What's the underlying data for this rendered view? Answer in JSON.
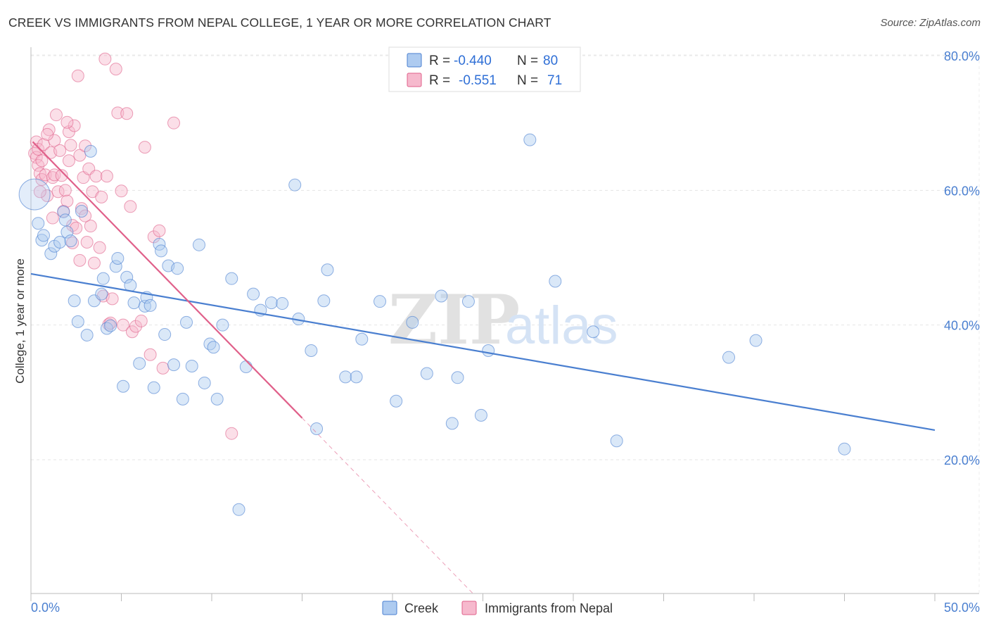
{
  "title": "CREEK VS IMMIGRANTS FROM NEPAL COLLEGE, 1 YEAR OR MORE CORRELATION CHART",
  "source": "Source: ZipAtlas.com",
  "watermark": {
    "zip": "ZIP",
    "atlas": "atlas"
  },
  "colors": {
    "creek": "#4a7fd0",
    "creek_fill": "#aecbf0",
    "nepal": "#e0608a",
    "nepal_fill": "#f6b9cd",
    "tick": "#4a7fd0"
  },
  "legend": {
    "creek": {
      "r_label": "R =",
      "r_value": "-0.440",
      "n_label": "N =",
      "n_value": "80"
    },
    "nepal": {
      "r_label": "R =",
      "r_value": "-0.551",
      "n_label": "N =",
      "n_value": "71"
    }
  },
  "chart_data": {
    "type": "scatter",
    "title": "CREEK VS IMMIGRANTS FROM NEPAL COLLEGE, 1 YEAR OR MORE CORRELATION CHART",
    "xlabel": "",
    "ylabel": "College, 1 year or more",
    "xlim": [
      0,
      50
    ],
    "ylim": [
      0,
      82
    ],
    "x_tick_labels": [
      "0.0%",
      "50.0%"
    ],
    "y_ticks": [
      20,
      40,
      60,
      80
    ],
    "y_tick_labels": [
      "20.0%",
      "40.0%",
      "60.0%",
      "80.0%"
    ],
    "grid": true,
    "legend_position": "top-center",
    "bottom_legend": [
      "Creek",
      "Immigrants from Nepal"
    ],
    "series": [
      {
        "name": "Creek",
        "r": -0.44,
        "n": 80,
        "trend": {
          "x": [
            0,
            50
          ],
          "y": [
            47.6,
            24.4
          ]
        },
        "points": [
          [
            0.4,
            55.1
          ],
          [
            0.6,
            52.6
          ],
          [
            0.7,
            53.3
          ],
          [
            1.1,
            50.6
          ],
          [
            1.3,
            51.7
          ],
          [
            1.6,
            52.3
          ],
          [
            1.8,
            56.8
          ],
          [
            1.9,
            55.6
          ],
          [
            2.0,
            53.8
          ],
          [
            2.2,
            52.5
          ],
          [
            2.4,
            43.6
          ],
          [
            2.6,
            40.5
          ],
          [
            2.8,
            56.9
          ],
          [
            3.1,
            38.5
          ],
          [
            3.3,
            65.8
          ],
          [
            3.5,
            43.6
          ],
          [
            3.9,
            44.6
          ],
          [
            4.0,
            46.9
          ],
          [
            4.2,
            39.5
          ],
          [
            4.4,
            39.9
          ],
          [
            4.7,
            48.7
          ],
          [
            4.8,
            49.9
          ],
          [
            5.1,
            30.9
          ],
          [
            5.3,
            47.1
          ],
          [
            5.5,
            45.9
          ],
          [
            5.7,
            43.3
          ],
          [
            6.0,
            34.3
          ],
          [
            6.3,
            42.8
          ],
          [
            6.4,
            44.1
          ],
          [
            6.6,
            42.9
          ],
          [
            6.8,
            30.7
          ],
          [
            7.1,
            52.0
          ],
          [
            7.2,
            51.0
          ],
          [
            7.4,
            38.6
          ],
          [
            7.6,
            48.8
          ],
          [
            7.9,
            34.1
          ],
          [
            8.1,
            48.4
          ],
          [
            8.4,
            29.0
          ],
          [
            8.6,
            40.4
          ],
          [
            8.9,
            33.9
          ],
          [
            9.3,
            51.9
          ],
          [
            9.6,
            31.4
          ],
          [
            9.9,
            37.2
          ],
          [
            10.1,
            36.7
          ],
          [
            10.3,
            29.0
          ],
          [
            10.6,
            40.0
          ],
          [
            11.1,
            46.9
          ],
          [
            11.5,
            12.6
          ],
          [
            11.9,
            33.8
          ],
          [
            12.3,
            44.6
          ],
          [
            12.7,
            42.2
          ],
          [
            13.3,
            43.3
          ],
          [
            13.9,
            43.2
          ],
          [
            14.6,
            60.8
          ],
          [
            14.8,
            40.9
          ],
          [
            15.5,
            36.2
          ],
          [
            15.8,
            24.6
          ],
          [
            16.2,
            43.6
          ],
          [
            16.4,
            48.2
          ],
          [
            17.4,
            32.3
          ],
          [
            18.0,
            32.3
          ],
          [
            18.3,
            37.9
          ],
          [
            19.3,
            43.5
          ],
          [
            20.2,
            28.7
          ],
          [
            21.1,
            40.4
          ],
          [
            21.9,
            32.8
          ],
          [
            22.7,
            44.3
          ],
          [
            23.3,
            25.4
          ],
          [
            23.6,
            32.2
          ],
          [
            24.2,
            43.5
          ],
          [
            24.9,
            26.6
          ],
          [
            25.3,
            36.2
          ],
          [
            27.6,
            67.5
          ],
          [
            29.0,
            46.5
          ],
          [
            31.1,
            39.0
          ],
          [
            32.4,
            22.8
          ],
          [
            38.6,
            35.2
          ],
          [
            40.1,
            37.7
          ],
          [
            45.0,
            21.6
          ],
          [
            0.2,
            59.4
          ]
        ]
      },
      {
        "name": "Immigrants from Nepal",
        "r": -0.551,
        "n": 71,
        "trend": {
          "x": [
            0.1,
            15.0
          ],
          "y": [
            67.2,
            26.2
          ]
        },
        "trend_dashed": {
          "x": [
            15.0,
            24.5
          ],
          "y": [
            26.2,
            0.0
          ]
        },
        "points": [
          [
            0.2,
            65.5
          ],
          [
            0.3,
            67.2
          ],
          [
            0.3,
            64.9
          ],
          [
            0.4,
            66.1
          ],
          [
            0.4,
            63.7
          ],
          [
            0.5,
            62.5
          ],
          [
            0.6,
            61.6
          ],
          [
            0.7,
            66.8
          ],
          [
            0.8,
            62.3
          ],
          [
            0.9,
            59.2
          ],
          [
            1.0,
            69.0
          ],
          [
            1.1,
            65.6
          ],
          [
            1.2,
            61.9
          ],
          [
            1.3,
            62.3
          ],
          [
            1.3,
            67.4
          ],
          [
            1.4,
            71.2
          ],
          [
            1.5,
            59.8
          ],
          [
            1.6,
            65.9
          ],
          [
            1.7,
            62.2
          ],
          [
            1.8,
            56.9
          ],
          [
            1.9,
            60.0
          ],
          [
            2.0,
            58.4
          ],
          [
            2.1,
            64.4
          ],
          [
            2.1,
            68.7
          ],
          [
            2.2,
            66.7
          ],
          [
            2.3,
            54.8
          ],
          [
            2.3,
            52.2
          ],
          [
            2.4,
            69.6
          ],
          [
            2.5,
            54.4
          ],
          [
            2.6,
            77.0
          ],
          [
            2.7,
            65.2
          ],
          [
            2.7,
            49.6
          ],
          [
            2.8,
            57.3
          ],
          [
            2.9,
            61.9
          ],
          [
            3.0,
            66.6
          ],
          [
            3.1,
            52.3
          ],
          [
            3.2,
            63.2
          ],
          [
            3.3,
            54.7
          ],
          [
            3.4,
            59.8
          ],
          [
            3.5,
            49.2
          ],
          [
            3.6,
            62.1
          ],
          [
            3.8,
            51.5
          ],
          [
            3.9,
            59.0
          ],
          [
            4.0,
            44.3
          ],
          [
            4.1,
            79.5
          ],
          [
            4.2,
            62.1
          ],
          [
            4.3,
            40.1
          ],
          [
            4.4,
            40.3
          ],
          [
            4.5,
            43.9
          ],
          [
            4.7,
            78.0
          ],
          [
            4.8,
            71.5
          ],
          [
            5.0,
            59.9
          ],
          [
            5.1,
            40.0
          ],
          [
            5.3,
            71.4
          ],
          [
            5.5,
            57.6
          ],
          [
            5.6,
            39.0
          ],
          [
            5.8,
            39.8
          ],
          [
            6.1,
            40.6
          ],
          [
            6.3,
            66.4
          ],
          [
            6.6,
            35.6
          ],
          [
            6.8,
            53.1
          ],
          [
            7.1,
            54.0
          ],
          [
            7.3,
            33.6
          ],
          [
            7.9,
            70.0
          ],
          [
            11.1,
            23.9
          ],
          [
            0.6,
            64.4
          ],
          [
            0.9,
            68.3
          ],
          [
            1.2,
            55.9
          ],
          [
            2.0,
            70.1
          ],
          [
            3.0,
            56.2
          ],
          [
            0.5,
            59.8
          ]
        ]
      }
    ]
  }
}
